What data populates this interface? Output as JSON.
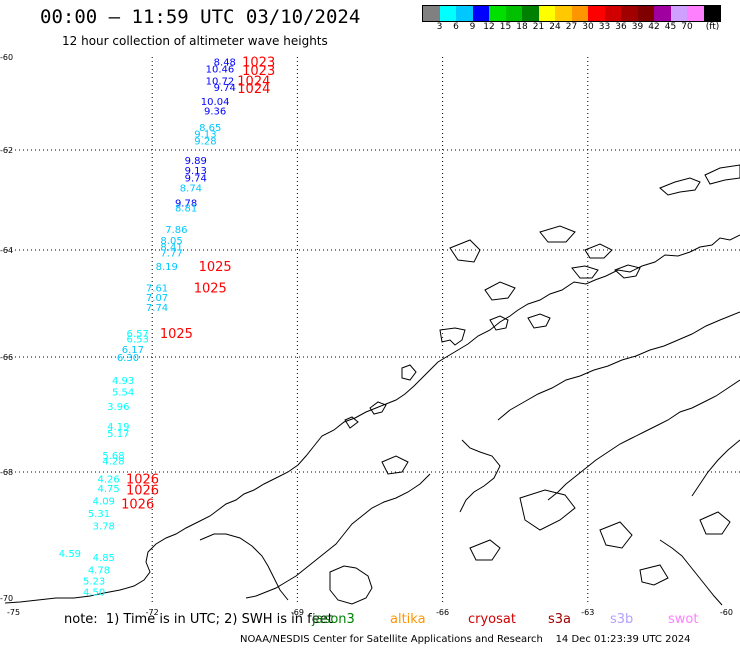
{
  "header": {
    "title": "00:00 – 11:59 UTC 03/10/2024",
    "subtitle": "12 hour collection of altimeter wave heights"
  },
  "colorbar": {
    "colors": [
      "#808080",
      "#00ffff",
      "#00c8ff",
      "#0000ff",
      "#00e000",
      "#00c000",
      "#008000",
      "#ffff00",
      "#ffc800",
      "#ff9600",
      "#ff0000",
      "#d00000",
      "#a00000",
      "#800000",
      "#a000a0",
      "#d0a0ff",
      "#ff80ff",
      "#000000"
    ],
    "labels": [
      "3",
      "6",
      "9",
      "12",
      "15",
      "18",
      "21",
      "24",
      "27",
      "30",
      "33",
      "36",
      "39",
      "42",
      "45",
      "70"
    ],
    "unit": "(ft)"
  },
  "axes": {
    "x_ticks": [
      "-75",
      "-72",
      "-69",
      "-66",
      "-63",
      "-60"
    ],
    "y_ticks": [
      "-60",
      "-62",
      "-64",
      "-66",
      "-68",
      "-70"
    ]
  },
  "note": "note:  1) Time is in UTC; 2) SWH is in feet",
  "satellites": [
    {
      "name": "jason3",
      "color": "#008000"
    },
    {
      "name": "altika",
      "color": "#ff9600"
    },
    {
      "name": "cryosat",
      "color": "#d00000"
    },
    {
      "name": "s3a",
      "color": "#a00000"
    },
    {
      "name": "s3b",
      "color": "#b4a0ff"
    },
    {
      "name": "swot",
      "color": "#ff80ff"
    }
  ],
  "credit": "NOAA/NESDIS Center for Satellite Applications and Research    14 Dec 01:23:39 UTC 2024",
  "chart_data": {
    "type": "scatter",
    "title": "00:00 – 11:59 UTC 03/10/2024",
    "subtitle": "12 hour collection of altimeter wave heights",
    "xlim": [
      -75,
      -60
    ],
    "ylim": [
      -70,
      -60
    ],
    "grid": true,
    "wave_heights": [
      {
        "lon": -70.5,
        "lat": -60.1,
        "text": "8.48",
        "color": "#0000ff"
      },
      {
        "lon": -70.6,
        "lat": -60.25,
        "text": "10.46",
        "color": "#0000ff"
      },
      {
        "lon": -70.6,
        "lat": -60.5,
        "text": "10.72",
        "color": "#0000ff"
      },
      {
        "lon": -70.5,
        "lat": -60.65,
        "text": "9.74",
        "color": "#0000ff"
      },
      {
        "lon": -70.7,
        "lat": -60.95,
        "text": "10.04",
        "color": "#0000ff"
      },
      {
        "lon": -70.7,
        "lat": -61.15,
        "text": "9.36",
        "color": "#0000ff"
      },
      {
        "lon": -70.8,
        "lat": -61.5,
        "text": "8.65",
        "color": "#00c8ff"
      },
      {
        "lon": -70.9,
        "lat": -61.65,
        "text": "9.13",
        "color": "#00c8ff"
      },
      {
        "lon": -70.9,
        "lat": -61.8,
        "text": "9.28",
        "color": "#00c8ff"
      },
      {
        "lon": -71.1,
        "lat": -62.2,
        "text": "9.89",
        "color": "#0000ff"
      },
      {
        "lon": -71.1,
        "lat": -62.4,
        "text": "9.13",
        "color": "#0000ff"
      },
      {
        "lon": -71.1,
        "lat": -62.55,
        "text": "9.74",
        "color": "#0000ff"
      },
      {
        "lon": -71.2,
        "lat": -62.75,
        "text": "8.74",
        "color": "#00c8ff"
      },
      {
        "lon": -71.3,
        "lat": -63.05,
        "text": "9.78",
        "color": "#0000ff"
      },
      {
        "lon": -71.3,
        "lat": -63.15,
        "text": "8.81",
        "color": "#00c8ff"
      },
      {
        "lon": -71.5,
        "lat": -63.58,
        "text": "7.86",
        "color": "#00c8ff"
      },
      {
        "lon": -71.6,
        "lat": -63.8,
        "text": "8.05",
        "color": "#00c8ff"
      },
      {
        "lon": -71.6,
        "lat": -63.93,
        "text": "8.41",
        "color": "#00c8ff"
      },
      {
        "lon": -71.6,
        "lat": -64.05,
        "text": "7.77",
        "color": "#00c8ff"
      },
      {
        "lon": -71.7,
        "lat": -64.3,
        "text": "8.19",
        "color": "#00c8ff"
      },
      {
        "lon": -71.9,
        "lat": -64.7,
        "text": "7.61",
        "color": "#00c8ff"
      },
      {
        "lon": -71.9,
        "lat": -64.88,
        "text": "7.07",
        "color": "#00c8ff"
      },
      {
        "lon": -71.9,
        "lat": -65.07,
        "text": "7.74",
        "color": "#00c8ff"
      },
      {
        "lon": -72.3,
        "lat": -65.55,
        "text": "6.57",
        "color": "#00ffff"
      },
      {
        "lon": -72.3,
        "lat": -65.65,
        "text": "6.53",
        "color": "#00ffff"
      },
      {
        "lon": -72.4,
        "lat": -65.85,
        "text": "6.17",
        "color": "#00c8ff"
      },
      {
        "lon": -72.5,
        "lat": -66.0,
        "text": "6.30",
        "color": "#00c8ff"
      },
      {
        "lon": -72.6,
        "lat": -66.4,
        "text": "4.93",
        "color": "#00ffff"
      },
      {
        "lon": -72.6,
        "lat": -66.6,
        "text": "5.54",
        "color": "#00ffff"
      },
      {
        "lon": -72.7,
        "lat": -66.85,
        "text": "3.96",
        "color": "#00ffff"
      },
      {
        "lon": -72.7,
        "lat": -67.2,
        "text": "4.19",
        "color": "#00ffff"
      },
      {
        "lon": -72.7,
        "lat": -67.32,
        "text": "5.17",
        "color": "#00ffff"
      },
      {
        "lon": -72.8,
        "lat": -67.7,
        "text": "5.68",
        "color": "#00ffff"
      },
      {
        "lon": -72.8,
        "lat": -67.8,
        "text": "4.28",
        "color": "#00ffff"
      },
      {
        "lon": -72.9,
        "lat": -68.1,
        "text": "4.26",
        "color": "#00ffff"
      },
      {
        "lon": -72.9,
        "lat": -68.25,
        "text": "4.75",
        "color": "#00ffff"
      },
      {
        "lon": -73.0,
        "lat": -68.45,
        "text": "4.09",
        "color": "#00ffff"
      },
      {
        "lon": -73.1,
        "lat": -68.65,
        "text": "5.31",
        "color": "#00ffff"
      },
      {
        "lon": -73.0,
        "lat": -68.85,
        "text": "3.78",
        "color": "#00ffff"
      },
      {
        "lon": -73.0,
        "lat": -69.35,
        "text": "4.85",
        "color": "#00ffff"
      },
      {
        "lon": -73.1,
        "lat": -69.55,
        "text": "4.78",
        "color": "#00ffff"
      },
      {
        "lon": -73.2,
        "lat": -69.72,
        "text": "5.23",
        "color": "#00ffff"
      },
      {
        "lon": -73.2,
        "lat": -69.9,
        "text": "4.50",
        "color": "#00ffff"
      },
      {
        "lon": -73.7,
        "lat": -70.75,
        "text": "4.59",
        "color": "#00ffff"
      }
    ],
    "pressures": [
      {
        "lon": -69.8,
        "lat": -60.1,
        "text": "1023",
        "color": "#ff0000"
      },
      {
        "lon": -69.8,
        "lat": -60.28,
        "text": "1023",
        "color": "#ff0000"
      },
      {
        "lon": -69.9,
        "lat": -60.5,
        "text": "1024",
        "color": "#ff0000"
      },
      {
        "lon": -69.9,
        "lat": -60.67,
        "text": "1024",
        "color": "#ff0000"
      },
      {
        "lon": -70.7,
        "lat": -64.3,
        "text": "1025",
        "color": "#ff0000"
      },
      {
        "lon": -70.8,
        "lat": -64.7,
        "text": "1025",
        "color": "#ff0000"
      },
      {
        "lon": -71.5,
        "lat": -65.55,
        "text": "1025",
        "color": "#ff0000"
      },
      {
        "lon": -72.2,
        "lat": -68.1,
        "text": "1026",
        "color": "#ff0000"
      },
      {
        "lon": -72.2,
        "lat": -68.28,
        "text": "1026",
        "color": "#ff0000"
      },
      {
        "lon": -72.3,
        "lat": -68.5,
        "text": "1026",
        "color": "#ff0000"
      }
    ]
  }
}
